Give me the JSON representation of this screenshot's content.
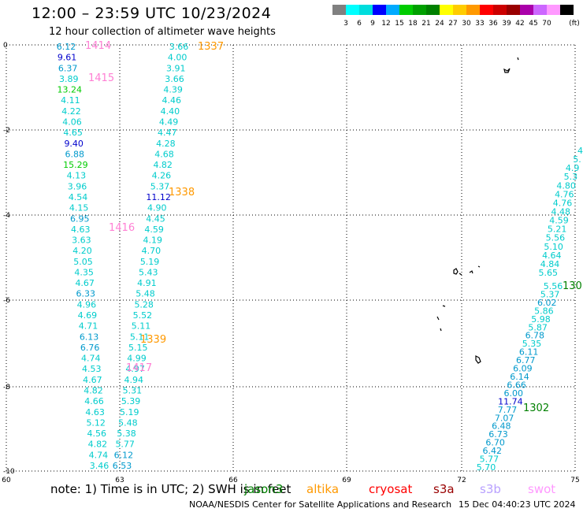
{
  "header": {
    "title": "12:00 – 23:59 UTC 10/23/2024",
    "subtitle": "12 hour collection of altimeter wave heights"
  },
  "legend": {
    "colors": [
      "#808080",
      "#00ffff",
      "#00dddd",
      "#0000ff",
      "#00aaff",
      "#00cc00",
      "#00a000",
      "#008000",
      "#ffff00",
      "#ffcc00",
      "#ff9900",
      "#ff0000",
      "#cc0000",
      "#990000",
      "#aa00aa",
      "#cc66ff",
      "#ff99ff",
      "#000000"
    ],
    "labels": [
      "3",
      "6",
      "9",
      "12",
      "15",
      "18",
      "21",
      "24",
      "27",
      "30",
      "33",
      "36",
      "39",
      "42",
      "45",
      "70"
    ],
    "unit": "(ft)"
  },
  "axes": {
    "y_ticks": [
      "0",
      "-2",
      "-4",
      "-6",
      "-8",
      "-10"
    ],
    "x_ticks": [
      "60",
      "63",
      "66",
      "69",
      "72",
      "75"
    ]
  },
  "passes": [
    {
      "id": "1414",
      "color": "#ff7fd4"
    },
    {
      "id": "1415",
      "color": "#ff7fd4"
    },
    {
      "id": "1416",
      "color": "#ff7fd4"
    },
    {
      "id": "1417",
      "color": "#ff7fd4"
    },
    {
      "id": "1337",
      "color": "#ff9900"
    },
    {
      "id": "1338",
      "color": "#ff9900"
    },
    {
      "id": "1339",
      "color": "#ff9900"
    },
    {
      "id": "1302",
      "color": "#008000"
    },
    {
      "id": "130",
      "color": "#008000"
    }
  ],
  "tracks": {
    "left": [
      "6.12",
      "9.61",
      "6.37",
      "3.89",
      "13.24",
      "4.11",
      "4.22",
      "4.06",
      "4.65",
      "9.40",
      "6.88",
      "15.29",
      "4.13",
      "3.96",
      "4.54",
      "4.15",
      "6.95",
      "4.63",
      "3.63",
      "4.20",
      "5.05",
      "4.35",
      "4.67",
      "6.33",
      "4.96",
      "4.69",
      "4.71",
      "6.13",
      "6.76",
      "4.74",
      "4.53",
      "4.67",
      "4.82",
      "4.66",
      "4.63",
      "5.12",
      "4.56",
      "4.82",
      "4.74",
      "3.46"
    ],
    "middle": [
      "3.66",
      "4.00",
      "3.91",
      "3.66",
      "4.39",
      "4.46",
      "4.40",
      "4.49",
      "4.47",
      "4.28",
      "4.68",
      "4.82",
      "4.26",
      "5.37",
      "11.12",
      "4.90",
      "4.45",
      "4.59",
      "4.19",
      "4.70",
      "5.19",
      "5.43",
      "4.91",
      "5.48",
      "5.28",
      "5.52",
      "5.11",
      "5.11",
      "5.15",
      "4.99",
      "4.97",
      "4.94",
      "5.31",
      "5.39",
      "5.19",
      "5.48",
      "5.38",
      "5.77",
      "6.12",
      "6.53"
    ],
    "right_upper": [
      "4",
      "5.",
      "4.9",
      "5.3",
      "4.80",
      "4.76",
      "4.76",
      "4.48",
      "4.59",
      "5.21",
      "5.56",
      "5.10",
      "4.64",
      "4.84",
      "5.65"
    ],
    "right_lower": [
      "5.56",
      "5.37",
      "6.02",
      "5.86",
      "5.98",
      "5.87",
      "6.78",
      "5.35",
      "6.11",
      "6.77",
      "6.09",
      "6.14",
      "6.66",
      "6.00",
      "11.74",
      "7.77",
      "7.07",
      "6.48",
      "6.73",
      "6.70",
      "6.42",
      "5.77",
      "5.70"
    ]
  },
  "footer": {
    "note": "note:  1) Time is in UTC;  2) SWH is in feet",
    "satellites": [
      "jason3",
      "altika",
      "cryosat",
      "s3a",
      "s3b",
      "swot"
    ],
    "satellite_colors": [
      "#008000",
      "#ff9900",
      "#ff0000",
      "#990000",
      "#b8a0ff",
      "#ff99ff"
    ],
    "credit": "NOAA/NESDIS Center for Satellite Applications and Research",
    "timestamp": "15 Dec 04:40:23 UTC 2024"
  }
}
